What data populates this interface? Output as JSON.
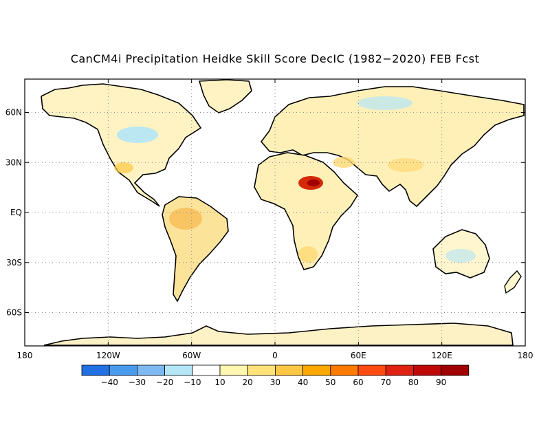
{
  "title": "CanCM4i Precipitation Heidke Skill Score DecIC (1982−2020) FEB Fcst",
  "map": {
    "projection": "equirectangular",
    "lon_range": [
      -180,
      180
    ],
    "lat_range": [
      -80,
      80
    ],
    "grid": "dotted",
    "y_ticks": [
      {
        "lat": 60,
        "label": "60N"
      },
      {
        "lat": 30,
        "label": "30N"
      },
      {
        "lat": 0,
        "label": "EQ"
      },
      {
        "lat": -30,
        "label": "30S"
      },
      {
        "lat": -60,
        "label": "60S"
      }
    ],
    "x_ticks": [
      {
        "lon": -180,
        "label": "180"
      },
      {
        "lon": -120,
        "label": "120W"
      },
      {
        "lon": -60,
        "label": "60W"
      },
      {
        "lon": 0,
        "label": "0"
      },
      {
        "lon": 60,
        "label": "60E"
      },
      {
        "lon": 120,
        "label": "120E"
      },
      {
        "lon": 180,
        "label": "180"
      }
    ]
  },
  "colorbar": {
    "colors": [
      "#2171e4",
      "#4a9bee",
      "#7db8f2",
      "#b3e6f7",
      "#ffffff",
      "#fff6b0",
      "#ffe27a",
      "#ffc844",
      "#ffa800",
      "#ff7a00",
      "#ff4a10",
      "#e02010",
      "#c00808",
      "#a00000"
    ],
    "labels": [
      "−40",
      "−30",
      "−20",
      "−10",
      "10",
      "20",
      "30",
      "40",
      "50",
      "60",
      "70",
      "80",
      "90"
    ]
  }
}
